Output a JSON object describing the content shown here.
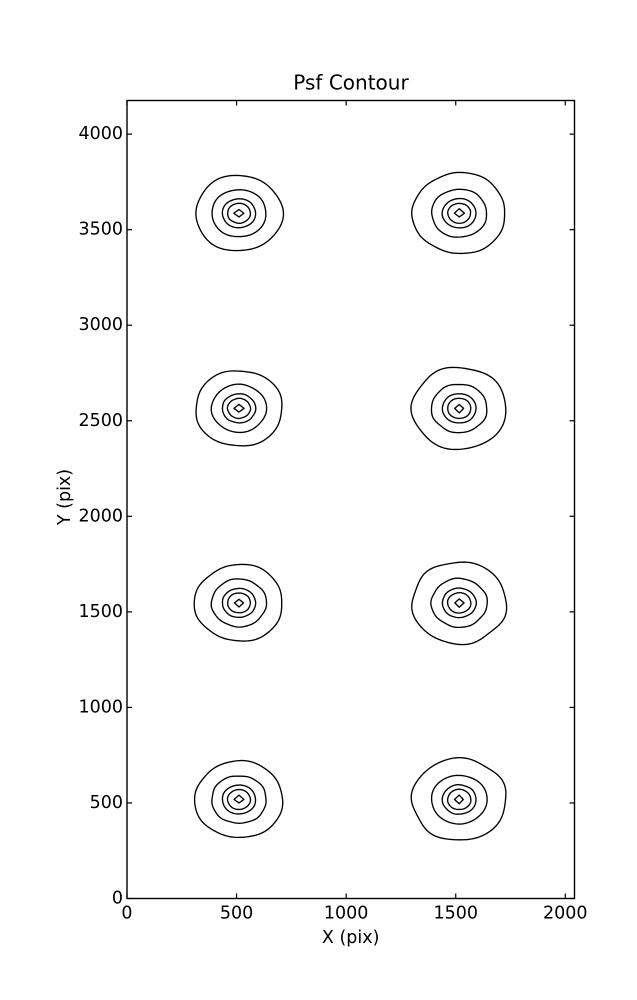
{
  "figure": {
    "title": "Psf Contour"
  },
  "chart_data": {
    "type": "contour",
    "title": "Psf Contour",
    "xlabel": "X (pix)",
    "ylabel": "Y (pix)",
    "xlim": [
      0,
      2042
    ],
    "ylim": [
      0,
      4176
    ],
    "xticks": [
      0,
      500,
      1000,
      1500,
      2000
    ],
    "yticks": [
      0,
      500,
      1000,
      1500,
      2000,
      2500,
      3000,
      3500,
      4000
    ],
    "grid": false,
    "legend": false,
    "line_color": "#000000",
    "background_color": "#ffffff",
    "contour_levels_per_psf": 5,
    "blobs": [
      {
        "cx": 511,
        "cy": 518,
        "rings": [
          201,
          125,
          76,
          52,
          21
        ]
      },
      {
        "cx": 1516,
        "cy": 518,
        "rings": [
          215,
          127,
          77,
          53,
          21
        ]
      },
      {
        "cx": 511,
        "cy": 1547,
        "rings": [
          201,
          125,
          76,
          52,
          21
        ]
      },
      {
        "cx": 1516,
        "cy": 1547,
        "rings": [
          215,
          127,
          77,
          53,
          21
        ]
      },
      {
        "cx": 511,
        "cy": 2565,
        "rings": [
          199,
          125,
          76,
          52,
          21
        ]
      },
      {
        "cx": 1516,
        "cy": 2565,
        "rings": [
          215,
          127,
          77,
          53,
          21
        ]
      },
      {
        "cx": 511,
        "cy": 3586,
        "rings": [
          198,
          124,
          76,
          52,
          21
        ]
      },
      {
        "cx": 1516,
        "cy": 3586,
        "rings": [
          212,
          126,
          77,
          52,
          21
        ]
      }
    ]
  }
}
